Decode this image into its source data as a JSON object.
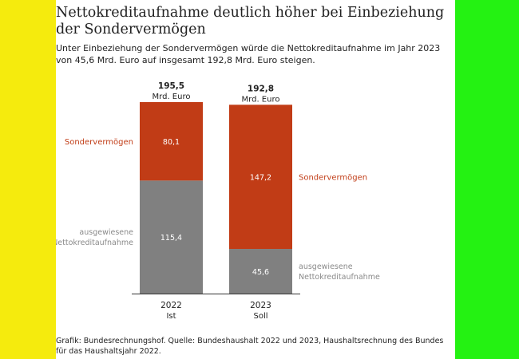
{
  "colors": {
    "background_left": "#f5eb0d",
    "background_right": "#24f212",
    "sondervermoegen": "#c13c16",
    "netto": "#808080",
    "bar_label": "#ffffff",
    "text": "#222222"
  },
  "title": "Nettokreditaufnahme deutlich höher bei Einbeziehung der Sondervermögen",
  "subtitle": "Unter Einbeziehung der Sondervermögen würde die Nettokreditaufnahme im Jahr 2023 von 45,6 Mrd. Euro auf insgesamt 192,8 Mrd. Euro steigen.",
  "source": "Grafik: Bundesrechnungshof. Quelle: Bundeshaushalt 2022 und 2023, Haushaltsrechnung des Bundes für das Haushaltsjahr 2022.",
  "chart_data": {
    "type": "bar",
    "stacked": true,
    "unit": "Mrd. Euro",
    "categories": [
      {
        "year": "2022",
        "sub": "Ist"
      },
      {
        "year": "2023",
        "sub": "Soll"
      }
    ],
    "totals": [
      {
        "value": "195,5",
        "unit": "Mrd. Euro"
      },
      {
        "value": "192,8",
        "unit": "Mrd. Euro"
      }
    ],
    "series": [
      {
        "key": "netto",
        "name": "ausgewiesene Nettokreditaufnahme",
        "values": [
          115.4,
          45.6
        ],
        "labels": [
          "115,4",
          "45,6"
        ]
      },
      {
        "key": "sondervermoegen",
        "name": "Sondervermögen",
        "values": [
          80.1,
          147.2
        ],
        "labels": [
          "80,1",
          "147,2"
        ]
      }
    ],
    "ylim": [
      0,
      195.5
    ],
    "grid": false
  }
}
